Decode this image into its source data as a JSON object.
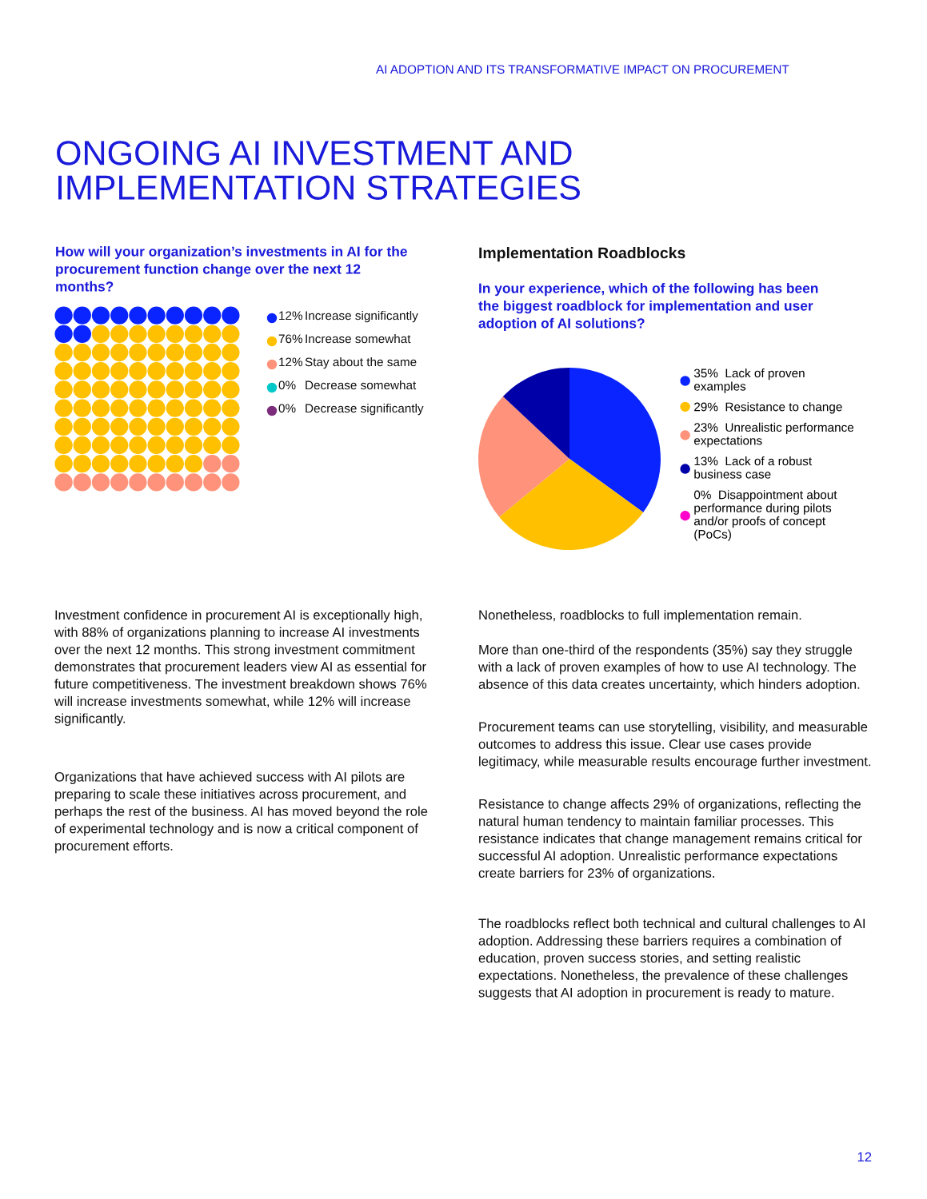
{
  "chart_data": [
    {
      "type": "other",
      "title": "How will your organization’s investments in AI for the procurement function change over the next 12 months?",
      "categories": [
        "Increase significantly",
        "Increase somewhat",
        "Stay about the same",
        "Decrease somewhat",
        "Decrease significantly"
      ],
      "values": [
        12,
        76,
        12,
        0,
        0
      ],
      "value_labels": [
        "12%",
        "76%",
        "12%",
        "0%",
        "0%"
      ],
      "colors": [
        "#0a24ff",
        "#ffc000",
        "#ff927a",
        "#00c8c8",
        "#7b2d7b"
      ],
      "annotations": [
        "AI ADOPTION AND ITS TRANSFORMATIVE IMPACT ON PROCUREMENT",
        "ONGOING AI INVESTMENT AND IMPLEMENTATION STRATEGIES",
        "Investment confidence in procurement AI is exceptionally high, with 88% of organizations planning to increase AI investments over the next 12 months. This strong investment commitment demonstrates that procurement leaders view AI as essential for future competitiveness. The investment breakdown shows 76% will increase investments somewhat, while 12% will increase significantly.",
        "Organizations that have achieved success with AI pilots are preparing to scale these initiatives across procurement, and perhaps the rest of the business. AI has moved beyond the role of experimental technology and is now a critical component of procurement efforts."
      ]
    },
    {
      "type": "pie",
      "title": "Implementation Roadblocks",
      "subtitle": "In your experience, which of the following has been the biggest roadblock for implementation and user adoption of AI solutions?",
      "categories": [
        "Lack of proven examples",
        "Resistance to change",
        "Unrealistic performance expectations",
        "Lack of a robust business case",
        "Disappointment about performance during pilots and/or proofs of concept (PoCs)"
      ],
      "values": [
        35,
        29,
        23,
        13,
        0
      ],
      "value_labels": [
        "35%",
        "29%",
        "23%",
        "13%",
        "0%"
      ],
      "colors": [
        "#0a24ff",
        "#ffc000",
        "#ff927a",
        "#0000a8",
        "#ff00cc"
      ],
      "legend": "right",
      "annotations": [
        "Nonetheless, roadblocks to full implementation remain.",
        "More than one-third of the respondents (35%) say they struggle with a lack of proven examples of how to use AI technology. The absence of this data creates uncertainty, which hinders adoption.",
        "Procurement teams can use storytelling, visibility, and measurable outcomes to address this issue. Clear use cases provide legitimacy, while measurable results encourage further investment.",
        "Resistance to change affects 29% of organizations, reflecting the natural human tendency to maintain familiar processes. This resistance indicates that change management remains critical for successful AI adoption. Unrealistic performance expectations create barriers for 23% of organizations.",
        "The roadblocks reflect both technical and cultural challenges to AI adoption. Addressing these barriers requires a combination of education, proven success stories, and setting realistic expectations. Nonetheless, the prevalence of these challenges suggests that AI adoption in procurement is ready to mature.",
        "12"
      ]
    }
  ]
}
